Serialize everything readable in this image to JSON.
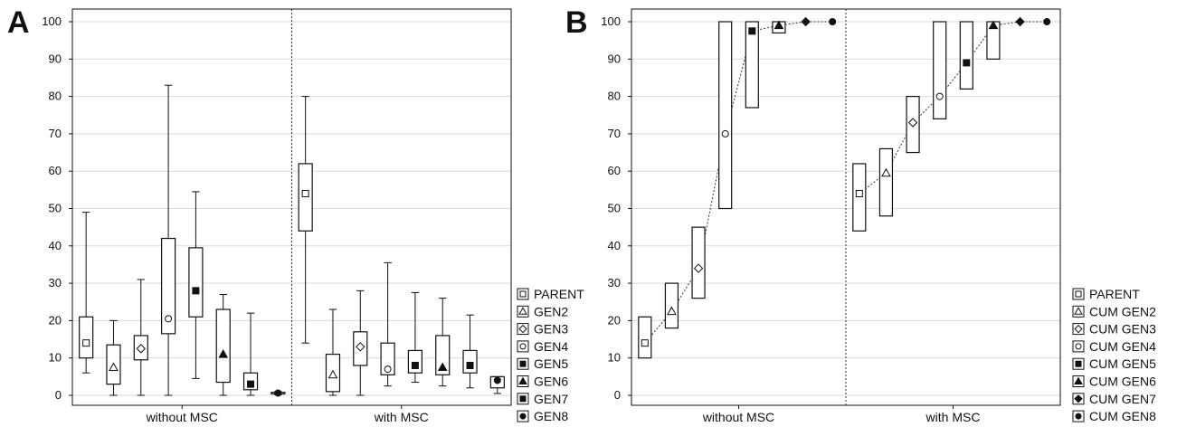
{
  "figure": {
    "panels": [
      "A",
      "B"
    ]
  },
  "chart_data": [
    {
      "panel": "A",
      "type": "box",
      "ylim": [
        0,
        100
      ],
      "yticks": [
        0,
        10,
        20,
        30,
        40,
        50,
        60,
        70,
        80,
        90,
        100
      ],
      "grid": true,
      "legend_position": "right",
      "groups": [
        "without MSC",
        "with MSC"
      ],
      "series": [
        {
          "name": "PARENT",
          "marker": "open-square",
          "groups": [
            {
              "whisker_low": 6,
              "q1": 10,
              "median": 14,
              "q3": 21,
              "whisker_high": 49
            },
            {
              "whisker_low": 14,
              "q1": 44,
              "median": 54,
              "q3": 62,
              "whisker_high": 80
            }
          ]
        },
        {
          "name": "GEN2",
          "marker": "open-triangle",
          "groups": [
            {
              "whisker_low": 0,
              "q1": 3,
              "median": 7.5,
              "q3": 13.5,
              "whisker_high": 20
            },
            {
              "whisker_low": 0,
              "q1": 1,
              "median": 5.5,
              "q3": 11,
              "whisker_high": 23
            }
          ]
        },
        {
          "name": "GEN3",
          "marker": "open-diamond",
          "groups": [
            {
              "whisker_low": 0,
              "q1": 9.5,
              "median": 12.5,
              "q3": 16,
              "whisker_high": 31
            },
            {
              "whisker_low": 0,
              "q1": 8,
              "median": 13,
              "q3": 17,
              "whisker_high": 28
            }
          ]
        },
        {
          "name": "GEN4",
          "marker": "open-circle",
          "groups": [
            {
              "whisker_low": 0,
              "q1": 16.5,
              "median": 20.5,
              "q3": 42,
              "whisker_high": 83
            },
            {
              "whisker_low": 2.5,
              "q1": 5.5,
              "median": 7,
              "q3": 14,
              "whisker_high": 35.5
            }
          ]
        },
        {
          "name": "GEN5",
          "marker": "filled-square",
          "groups": [
            {
              "whisker_low": 4.5,
              "q1": 21,
              "median": 28,
              "q3": 39.5,
              "whisker_high": 54.5
            },
            {
              "whisker_low": 3.5,
              "q1": 6,
              "median": 8,
              "q3": 12,
              "whisker_high": 27.5
            }
          ]
        },
        {
          "name": "GEN6",
          "marker": "filled-triangle",
          "groups": [
            {
              "whisker_low": 0,
              "q1": 3.5,
              "median": 11,
              "q3": 23,
              "whisker_high": 27
            },
            {
              "whisker_low": 2.5,
              "q1": 5.5,
              "median": 7.5,
              "q3": 16,
              "whisker_high": 26
            }
          ]
        },
        {
          "name": "GEN7",
          "marker": "filled-square",
          "groups": [
            {
              "whisker_low": 0,
              "q1": 1.5,
              "median": 3,
              "q3": 6,
              "whisker_high": 22
            },
            {
              "whisker_low": 2,
              "q1": 6,
              "median": 8,
              "q3": 12,
              "whisker_high": 21.5
            }
          ]
        },
        {
          "name": "GEN8",
          "marker": "filled-circle",
          "groups": [
            {
              "whisker_low": 0.2,
              "q1": 0.4,
              "median": 0.6,
              "q3": 0.8,
              "whisker_high": 1.0
            },
            {
              "whisker_low": 0.5,
              "q1": 2,
              "median": 4,
              "q3": 5,
              "whisker_high": 5
            }
          ]
        }
      ]
    },
    {
      "panel": "B",
      "type": "box",
      "ylim": [
        0,
        100
      ],
      "yticks": [
        0,
        10,
        20,
        30,
        40,
        50,
        60,
        70,
        80,
        90,
        100
      ],
      "grid": true,
      "legend_position": "right",
      "groups": [
        "without MSC",
        "with MSC"
      ],
      "connecting_line": "dotted",
      "series": [
        {
          "name": "PARENT",
          "marker": "open-square",
          "groups": [
            {
              "low": 10,
              "median": 14,
              "high": 21
            },
            {
              "low": 44,
              "median": 54,
              "high": 62
            }
          ]
        },
        {
          "name": "CUM GEN2",
          "marker": "open-triangle",
          "groups": [
            {
              "low": 18,
              "median": 22.5,
              "high": 30
            },
            {
              "low": 48,
              "median": 59.5,
              "high": 66
            }
          ]
        },
        {
          "name": "CUM GEN3",
          "marker": "open-diamond",
          "groups": [
            {
              "low": 26,
              "median": 34,
              "high": 45
            },
            {
              "low": 65,
              "median": 73,
              "high": 80
            }
          ]
        },
        {
          "name": "CUM GEN4",
          "marker": "open-circle",
          "groups": [
            {
              "low": 50,
              "median": 70,
              "high": 100
            },
            {
              "low": 74,
              "median": 80,
              "high": 100
            }
          ]
        },
        {
          "name": "CUM GEN5",
          "marker": "filled-square",
          "groups": [
            {
              "low": 77,
              "median": 97.5,
              "high": 100
            },
            {
              "low": 82,
              "median": 89,
              "high": 100
            }
          ]
        },
        {
          "name": "CUM GEN6",
          "marker": "filled-triangle",
          "groups": [
            {
              "low": 97,
              "median": 99,
              "high": 100
            },
            {
              "low": 90,
              "median": 99,
              "high": 100
            }
          ]
        },
        {
          "name": "CUM GEN7",
          "marker": "filled-diamond",
          "groups": [
            {
              "low": 100,
              "median": 100,
              "high": 100
            },
            {
              "low": 100,
              "median": 100,
              "high": 100
            }
          ]
        },
        {
          "name": "CUM GEN8",
          "marker": "filled-circle",
          "groups": [
            {
              "low": 100,
              "median": 100,
              "high": 100
            },
            {
              "low": 100,
              "median": 100,
              "high": 100
            }
          ]
        }
      ]
    }
  ]
}
